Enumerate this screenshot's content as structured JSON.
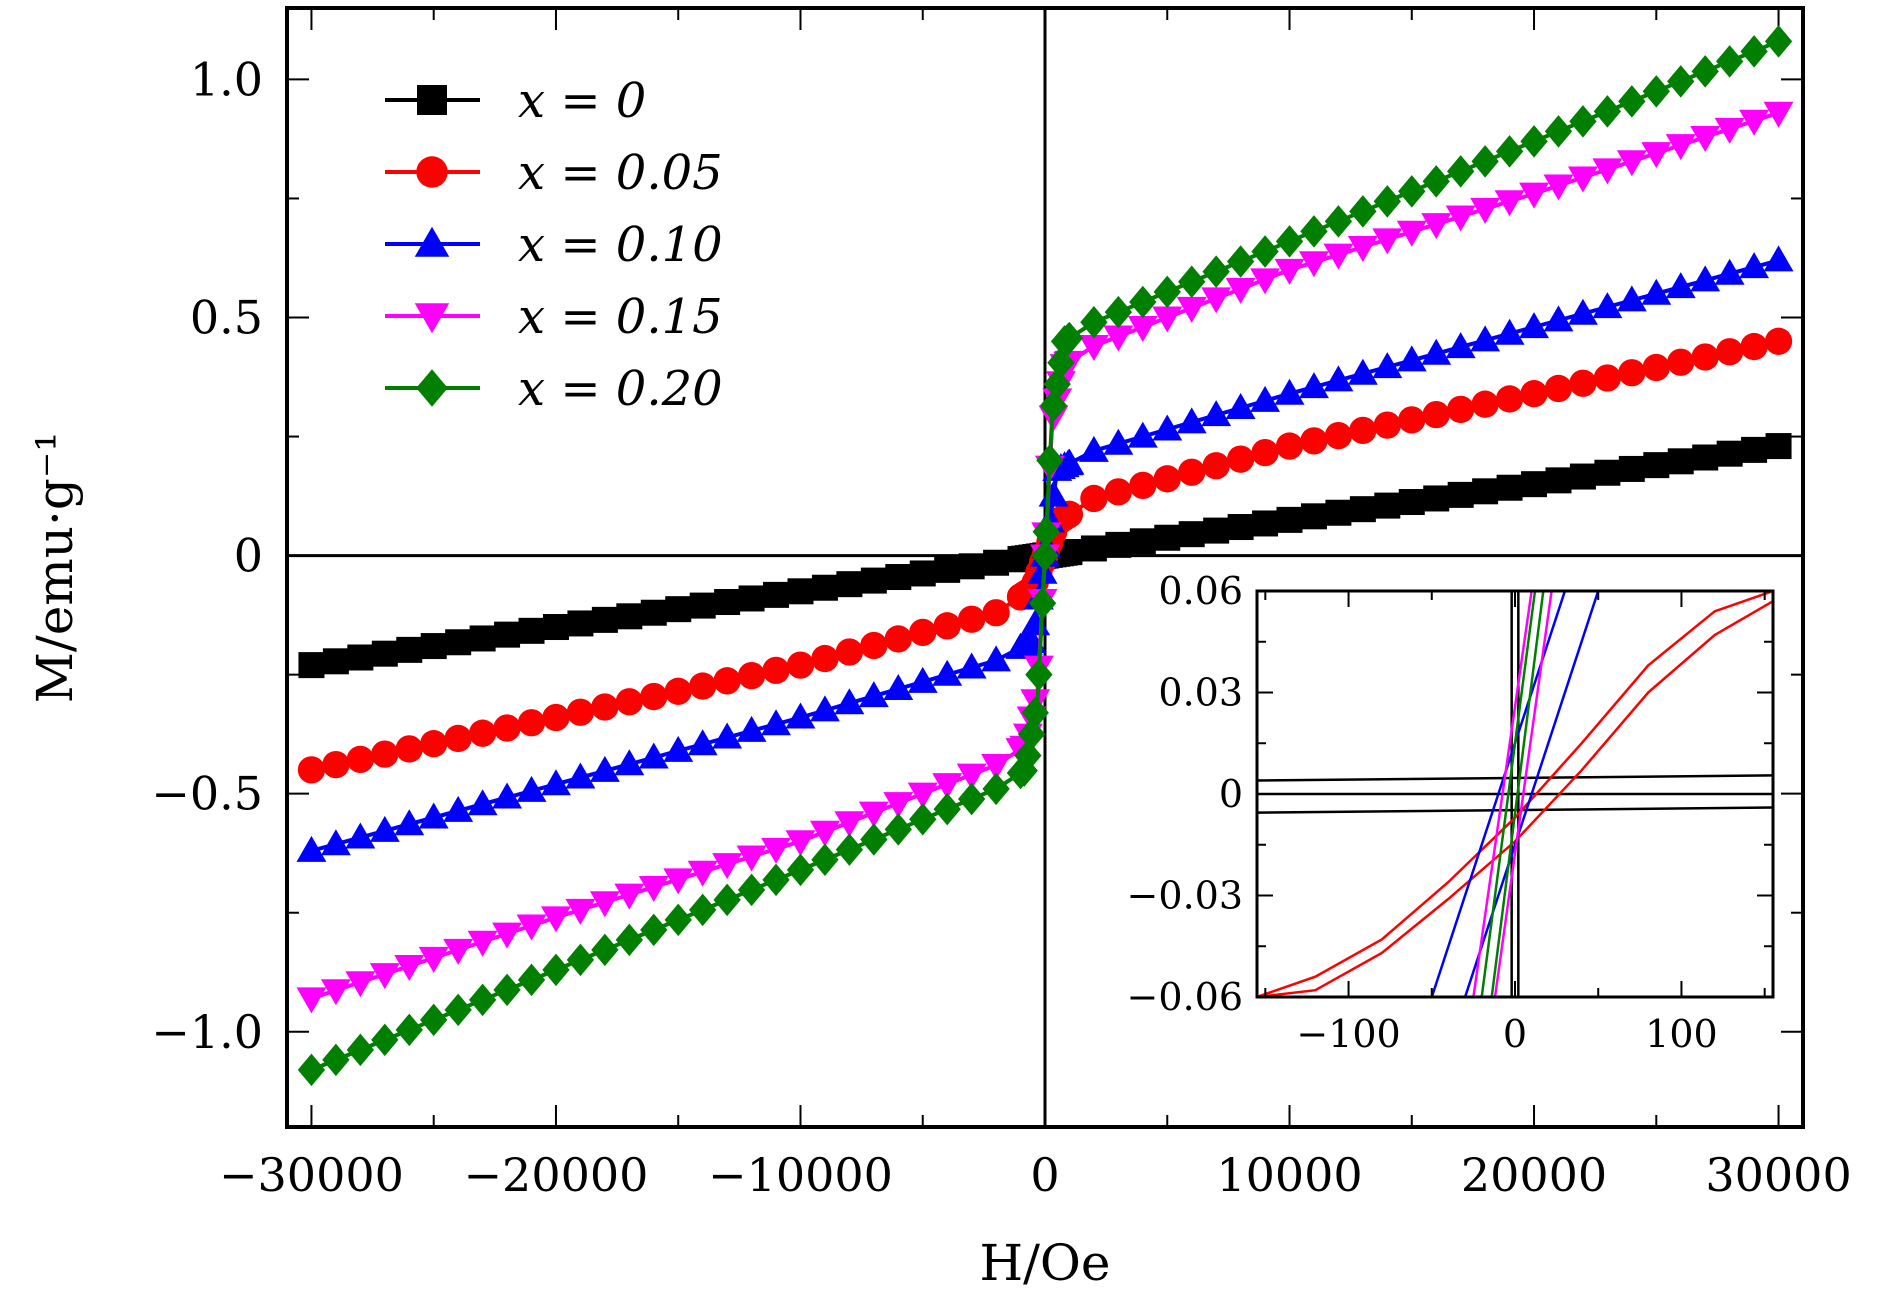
{
  "chart_data": [
    {
      "type": "line",
      "xlabel": "H/Oe",
      "ylabel": "M/emu·g⁻¹",
      "xlim": [
        -31000,
        31000
      ],
      "ylim": [
        -1.2,
        1.15
      ],
      "xticks": [
        -30000,
        -20000,
        -10000,
        0,
        10000,
        20000,
        30000
      ],
      "xtick_labels": [
        "−30000",
        "−20000",
        "−10000",
        "0",
        "10000",
        "20000",
        "30000"
      ],
      "yticks": [
        -1.0,
        -0.5,
        0,
        0.5,
        1.0
      ],
      "ytick_labels": [
        "−1.0",
        "−0.5",
        "0",
        "0.5",
        "1.0"
      ],
      "grid": false,
      "legend_position": "top-left",
      "series": [
        {
          "name": "x = 0",
          "color": "#000000",
          "marker": "square",
          "x": [
            -30000,
            -20000,
            -10000,
            -2000,
            0,
            2000,
            10000,
            20000,
            30000
          ],
          "y": [
            -0.23,
            -0.15,
            -0.075,
            -0.015,
            0,
            0.015,
            0.075,
            0.15,
            0.23
          ]
        },
        {
          "name": "x = 0.05",
          "color": "#ff0000",
          "marker": "circle",
          "x": [
            -30000,
            -20000,
            -10000,
            -2000,
            -500,
            0,
            500,
            2000,
            10000,
            20000,
            30000
          ],
          "y": [
            -0.45,
            -0.34,
            -0.23,
            -0.12,
            -0.07,
            0,
            0.07,
            0.12,
            0.23,
            0.34,
            0.45
          ]
        },
        {
          "name": "x = 0.10",
          "color": "#0000ff",
          "marker": "triangle-up",
          "x": [
            -30000,
            -20000,
            -10000,
            -2000,
            -500,
            0,
            500,
            2000,
            10000,
            20000,
            30000
          ],
          "y": [
            -0.62,
            -0.48,
            -0.34,
            -0.22,
            -0.18,
            0,
            0.18,
            0.22,
            0.34,
            0.48,
            0.62
          ]
        },
        {
          "name": "x = 0.15",
          "color": "#ff00ff",
          "marker": "triangle-down",
          "x": [
            -30000,
            -20000,
            -10000,
            -2000,
            -800,
            -300,
            0,
            300,
            800,
            2000,
            10000,
            20000,
            30000
          ],
          "y": [
            -0.93,
            -0.76,
            -0.6,
            -0.44,
            -0.4,
            -0.28,
            0,
            0.28,
            0.4,
            0.44,
            0.6,
            0.76,
            0.93
          ]
        },
        {
          "name": "x = 0.20",
          "color": "#007f00",
          "marker": "diamond",
          "x": [
            -30000,
            -20000,
            -10000,
            -2000,
            -800,
            -300,
            0,
            300,
            800,
            2000,
            10000,
            20000,
            30000
          ],
          "y": [
            -1.08,
            -0.87,
            -0.66,
            -0.49,
            -0.45,
            -0.3,
            0,
            0.3,
            0.45,
            0.49,
            0.66,
            0.87,
            1.08
          ]
        }
      ]
    },
    {
      "type": "line",
      "xlim": [
        -155,
        155
      ],
      "ylim": [
        -0.06,
        0.06
      ],
      "xticks": [
        -100,
        0,
        100
      ],
      "xtick_labels": [
        "−100",
        "0",
        "100"
      ],
      "yticks": [
        -0.06,
        -0.03,
        0,
        0.03,
        0.06
      ],
      "ytick_labels": [
        "−0.06",
        "−0.03",
        "0",
        "0.03",
        "0.06"
      ],
      "series": [
        {
          "color": "#000000",
          "x": [
            -155,
            155
          ],
          "y": [
            0.004,
            0.0055
          ]
        },
        {
          "color": "#000000",
          "x": [
            -155,
            155
          ],
          "y": [
            -0.0055,
            -0.004
          ]
        },
        {
          "color": "#ff0000",
          "x": [
            -155,
            -120,
            -80,
            -40,
            0,
            40,
            80,
            120,
            155
          ],
          "y": [
            -0.06,
            -0.054,
            -0.043,
            -0.026,
            -0.007,
            0.015,
            0.038,
            0.054,
            0.06
          ]
        },
        {
          "color": "#ff0000",
          "x": [
            -155,
            -120,
            -80,
            -40,
            0,
            40,
            80,
            120,
            155
          ],
          "y": [
            -0.06,
            -0.058,
            -0.047,
            -0.031,
            -0.014,
            0.007,
            0.03,
            0.047,
            0.057
          ]
        },
        {
          "color": "#0000ff",
          "x": [
            -50,
            30
          ],
          "y": [
            -0.06,
            0.06
          ]
        },
        {
          "color": "#0000ff",
          "x": [
            -30,
            50
          ],
          "y": [
            -0.06,
            0.06
          ]
        },
        {
          "color": "#ff00ff",
          "x": [
            -25,
            10
          ],
          "y": [
            -0.06,
            0.06
          ]
        },
        {
          "color": "#ff00ff",
          "x": [
            -12,
            22
          ],
          "y": [
            -0.06,
            0.06
          ]
        },
        {
          "color": "#007f00",
          "x": [
            -20,
            12
          ],
          "y": [
            -0.06,
            0.06
          ]
        },
        {
          "color": "#007f00",
          "x": [
            -14,
            17
          ],
          "y": [
            -0.06,
            0.06
          ]
        }
      ]
    }
  ]
}
